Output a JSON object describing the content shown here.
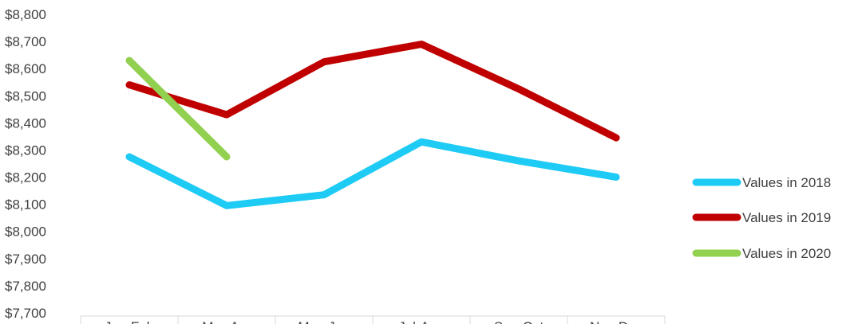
{
  "chart_data": {
    "type": "line",
    "categories": [
      "Jan-Feb",
      "Mar-Apr",
      "May-Jun",
      "Jul-Aug",
      "Sep-Oct",
      "Nov-Dec"
    ],
    "series": [
      {
        "name": "Values in 2018",
        "color": "#1ecbf5",
        "values": [
          8275,
          8095,
          8135,
          8330,
          8260,
          8200
        ]
      },
      {
        "name": "Values in 2019",
        "color": "#c00000",
        "values": [
          8540,
          8430,
          8625,
          8690,
          8525,
          8345
        ]
      },
      {
        "name": "Values in 2020",
        "color": "#92d050",
        "values": [
          8630,
          8275,
          null,
          null,
          null,
          null
        ]
      }
    ],
    "yticks": [
      "$7,700",
      "$7,800",
      "$7,900",
      "$8,000",
      "$8,100",
      "$8,200",
      "$8,300",
      "$8,400",
      "$8,500",
      "$8,600",
      "$8,700",
      "$8,800"
    ],
    "ylim": [
      7700,
      8800
    ],
    "title": "",
    "xlabel": "",
    "ylabel": "",
    "grid": false,
    "legend_position": "right"
  }
}
